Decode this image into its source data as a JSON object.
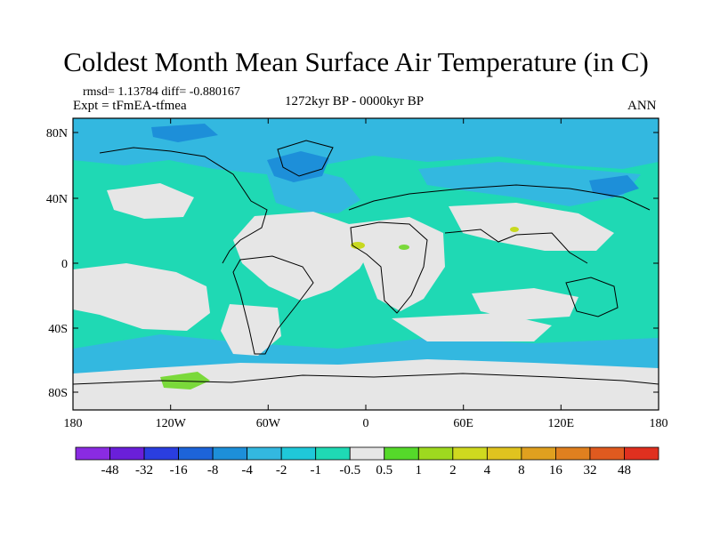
{
  "title": "Coldest Month Mean Surface Air Temperature (in C)",
  "stats_line": "rmsd= 1.13784 diff= -0.880167",
  "experiment": "Expt = tFmEA-tfmea",
  "period": "1272kyr BP - 0000kyr BP",
  "season": "ANN",
  "colors": {
    "ocean_base": "#1fd9b4",
    "neutral": "#e6e6e6",
    "cool1": "#33b8e0",
    "cool2": "#1d8fd9",
    "warm1": "#7ad93a",
    "warm2": "#c8d91f"
  },
  "map": {
    "lat_labels": [
      "80N",
      "40N",
      "0",
      "40S",
      "80S"
    ],
    "lon_labels": [
      "180",
      "120W",
      "60W",
      "0",
      "60E",
      "120E",
      "180"
    ]
  },
  "colorbar": {
    "colors": [
      "#8a2be2",
      "#6a1fd9",
      "#2a3ee0",
      "#1d64d9",
      "#1d8fd9",
      "#33b8e0",
      "#1fc8d9",
      "#1fd9b4",
      "#e6e6e6",
      "#55d92a",
      "#9ed91f",
      "#cfd91f",
      "#e0c31f",
      "#e0a01f",
      "#e0801f",
      "#e05a1f",
      "#e0301f"
    ],
    "labels": [
      "-48",
      "-32",
      "-16",
      "-8",
      "-4",
      "-2",
      "-1",
      "-0.5",
      "0.5",
      "1",
      "2",
      "4",
      "8",
      "16",
      "32",
      "48"
    ]
  }
}
